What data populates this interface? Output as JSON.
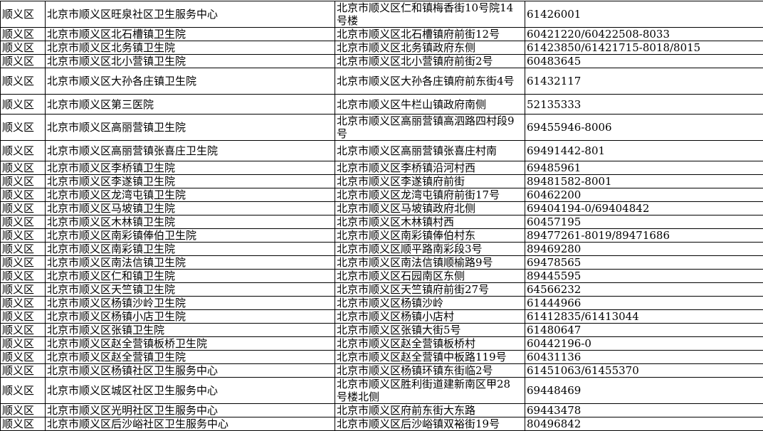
{
  "table": {
    "district_label": "顺义区",
    "columns": [
      "district",
      "name",
      "address",
      "phone"
    ],
    "rows": [
      {
        "district": "顺义区",
        "name": "北京市顺义区旺泉社区卫生服务中心",
        "address": "北京市顺义区仁和镇梅香街10号院14\n号楼",
        "phone": "61426001"
      },
      {
        "district": "顺义区",
        "name": "北京市顺义区北石槽镇卫生院",
        "address": "北京市顺义区北石槽镇府前街12号",
        "phone": "60421220/60422508-8033"
      },
      {
        "district": "顺义区",
        "name": "北京市顺义区北务镇卫生院",
        "address": "北京市顺义区北务镇政府东侧",
        "phone": "61423850/61421715-8018/8015"
      },
      {
        "district": "顺义区",
        "name": "北京市顺义区北小营镇卫生院",
        "address": "北京市顺义区北小营镇府前街2号",
        "phone": "60483645"
      },
      {
        "district": "顺义区",
        "name": "北京市顺义区大孙各庄镇卫生院",
        "address": "北京市顺义区大孙各庄镇府前东街4号",
        "phone": "61432117"
      },
      {
        "district": "顺义区",
        "name": "北京市顺义区第三医院",
        "address": "北京市顺义区牛栏山镇政府南侧",
        "phone": "52135333"
      },
      {
        "district": "顺义区",
        "name": "北京市顺义区高丽营镇卫生院",
        "address": "北京市顺义区高丽营镇高泗路四村段9\n号",
        "phone": "69455946-8006"
      },
      {
        "district": "顺义区",
        "name": "北京市顺义区高丽营镇张喜庄卫生院",
        "address": "北京市顺义区高丽营镇张喜庄村南",
        "phone": "69491442-801"
      },
      {
        "district": "顺义区",
        "name": "北京市顺义区李桥镇卫生院",
        "address": "北京市顺义区李桥镇沿河村西",
        "phone": "69485961"
      },
      {
        "district": "顺义区",
        "name": "北京市顺义区李遂镇卫生院",
        "address": "北京市顺义区李遂镇府前街",
        "phone": "89481582-8001"
      },
      {
        "district": "顺义区",
        "name": "北京市顺义区龙湾屯镇卫生院",
        "address": "北京市顺义区龙湾屯镇府前街17号",
        "phone": "60462200"
      },
      {
        "district": "顺义区",
        "name": "北京市顺义区马坡镇卫生院",
        "address": "北京市顺义区马坡镇政府北侧",
        "phone": "69404194-0/69404842"
      },
      {
        "district": "顺义区",
        "name": "北京市顺义区木林镇卫生院",
        "address": "北京市顺义区木林镇村西",
        "phone": "60457195"
      },
      {
        "district": "顺义区",
        "name": "北京市顺义区南彩镇俸伯卫生院",
        "address": "北京市顺义区南彩镇俸伯村东",
        "phone": "89477261-8019/89471686"
      },
      {
        "district": "顺义区",
        "name": "北京市顺义区南彩镇卫生院",
        "address": "北京市顺义区顺平路南彩段3号",
        "phone": "89469280"
      },
      {
        "district": "顺义区",
        "name": "北京市顺义区南法信镇卫生院",
        "address": "北京市顺义区南法信镇顺榆路9号",
        "phone": "69478565"
      },
      {
        "district": "顺义区",
        "name": "北京市顺义区仁和镇卫生院",
        "address": "北京市顺义区石园南区东侧",
        "phone": "89445595"
      },
      {
        "district": "顺义区",
        "name": "北京市顺义区天竺镇卫生院",
        "address": "北京市顺义区天竺镇府前街27号",
        "phone": "64566232"
      },
      {
        "district": "顺义区",
        "name": "北京市顺义区杨镇沙岭卫生院",
        "address": "北京市顺义区杨镇沙岭",
        "phone": "61444966"
      },
      {
        "district": "顺义区",
        "name": "北京市顺义区杨镇小店卫生院",
        "address": "北京市顺义区杨镇小店村",
        "phone": "61412835/61413044"
      },
      {
        "district": "顺义区",
        "name": "北京市顺义区张镇卫生院",
        "address": "北京市顺义区张镇大街5号",
        "phone": "61480647"
      },
      {
        "district": "顺义区",
        "name": "北京市顺义区赵全营镇板桥卫生院",
        "address": "北京市顺义区赵全营镇板桥村",
        "phone": "60442196-0"
      },
      {
        "district": "顺义区",
        "name": "北京市顺义区赵全营镇卫生院",
        "address": "北京市顺义区赵全营镇中板路119号",
        "phone": "60431136"
      },
      {
        "district": "顺义区",
        "name": "北京市顺义区杨镇社区卫生服务中心",
        "address": "北京市顺义区杨镇环镇东街临2号",
        "phone": "61451063/61455370"
      },
      {
        "district": "顺义区",
        "name": "北京市顺义区城区社区卫生服务中心",
        "address": "北京市顺义区胜利街道建新南区甲28\n号楼北侧",
        "phone": "69448469"
      },
      {
        "district": "顺义区",
        "name": "北京市顺义区光明社区卫生服务中心",
        "address": "北京市顺义区府前东街大东路",
        "phone": "69443478"
      },
      {
        "district": "顺义区",
        "name": "北京市顺义区后沙峪社区卫生服务中心",
        "address": "北京市顺义区后沙峪镇双裕街19号",
        "phone": "80496842"
      }
    ]
  }
}
